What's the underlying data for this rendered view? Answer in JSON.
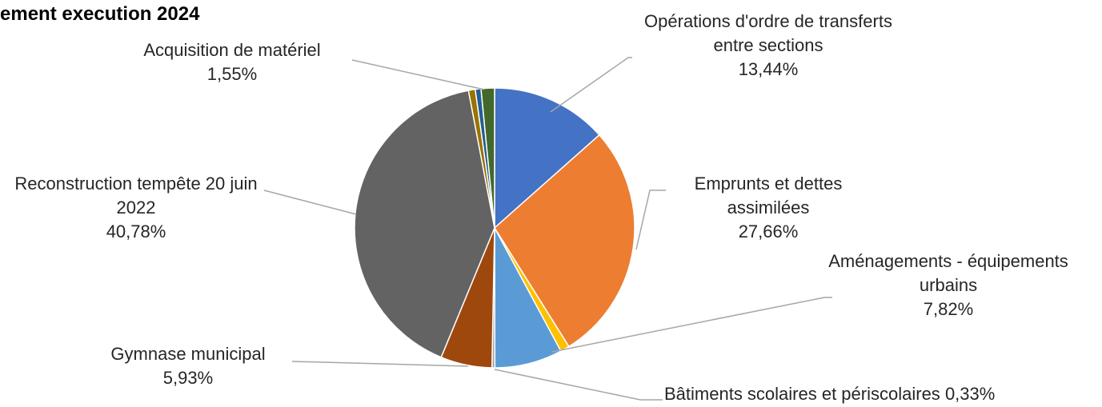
{
  "chart_data": {
    "type": "pie",
    "title": "ement execution 2024",
    "categories": [
      "Opérations d'ordre de transferts entre sections",
      "Emprunts et dettes assimilées",
      null,
      "Aménagements - équipements urbains",
      "Bâtiments scolaires et périscolaires",
      "Gymnase municipal",
      "Reconstruction tempête 20 juin 2022",
      null,
      null,
      "Acquisition de matériel"
    ],
    "values": [
      13.44,
      27.66,
      1.05,
      7.82,
      0.33,
      5.93,
      40.78,
      0.78,
      0.66,
      1.55
    ],
    "value_labels": [
      "13,44%",
      "27,66%",
      null,
      "7,82%",
      "0,33%",
      "5,93%",
      "40,78%",
      null,
      null,
      "1,55%"
    ],
    "colors": [
      "#4472c4",
      "#ed7d31",
      "#ffc000",
      "#5b9bd5",
      "#a5a5a5",
      "#9e480e",
      "#636363",
      "#997300",
      "#255e91",
      "#43682b"
    ]
  }
}
